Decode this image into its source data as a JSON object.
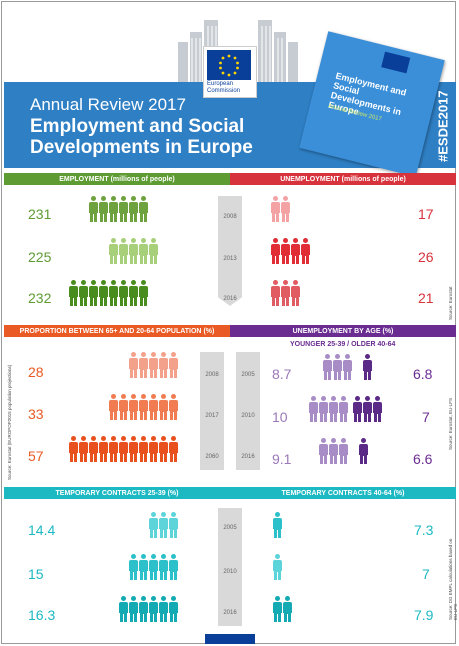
{
  "header": {
    "logo_line1": "European",
    "logo_line2": "Commission",
    "title_line1": "Annual Review 2017",
    "title_line2": "Employment and Social Developments in Europe",
    "hashtag": "#ESDE2017",
    "cover_title": "Employment and Social Developments in Europe",
    "cover_subtitle": "Annual Review 2017"
  },
  "sections": {
    "employment": {
      "label": "EMPLOYMENT",
      "unit": "(millions of people)",
      "color": "#5e9b33",
      "values": [
        "231",
        "225",
        "232"
      ]
    },
    "unemployment": {
      "label": "UNEMPLOYMENT",
      "unit": "(millions of people)",
      "color": "#d7333c",
      "values": [
        "17",
        "26",
        "21"
      ],
      "source": "Source: Eurostat"
    },
    "years_top": [
      "2008",
      "2013",
      "2016"
    ],
    "proportion": {
      "label": "PROPORTION BETWEEN 65+ AND 20-64 POPULATION",
      "unit": "(%)",
      "color": "#e95a24",
      "values": [
        "28",
        "33",
        "57"
      ],
      "years": [
        "2008",
        "2017",
        "2060"
      ],
      "source": "Source: Eurostat (EUROPOP2015 population projections)"
    },
    "unemployment_age": {
      "label": "UNEMPLOYMENT BY AGE",
      "unit": "(%)",
      "color": "#6b2c91",
      "sublabel": "YOUNGER 25-39 / OLDER 40-64",
      "younger": [
        "8.7",
        "10",
        "9.1"
      ],
      "older": [
        "6.8",
        "7",
        "6.6"
      ],
      "years": [
        "2005",
        "2010",
        "2016"
      ],
      "source": "Source: Eurostat, EU-LFS"
    },
    "temp_young": {
      "label": "TEMPORARY CONTRACTS 25-39",
      "unit": "(%)",
      "color": "#1db9c3",
      "values": [
        "14.4",
        "15",
        "16.3"
      ]
    },
    "temp_old": {
      "label": "TEMPORARY CONTRACTS 40-64",
      "unit": "(%)",
      "values": [
        "7.3",
        "7",
        "7.9"
      ],
      "source": "Source: DG EMPL calculations based on EU-LFS"
    },
    "years_bottom": [
      "2005",
      "2010",
      "2016"
    ]
  }
}
